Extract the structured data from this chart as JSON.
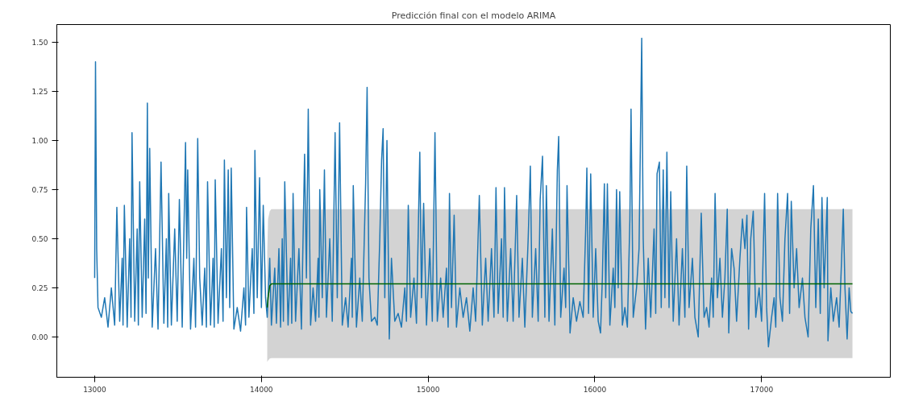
{
  "chart_data": {
    "type": "line",
    "title": "Predicción final con el modelo ARIMA",
    "xlim": [
      12773,
      17772
    ],
    "ylim": [
      -0.205,
      1.59
    ],
    "xticks": [
      13000,
      14000,
      15000,
      16000,
      17000
    ],
    "yticks": [
      {
        "value": 0,
        "label": "0.00"
      },
      {
        "value": 0.25,
        "label": "0.25"
      },
      {
        "value": 0.5,
        "label": "0.50"
      },
      {
        "value": 0.75,
        "label": "0.75"
      },
      {
        "value": 1,
        "label": "1.00"
      },
      {
        "value": 1.25,
        "label": "1.25"
      },
      {
        "value": 1.5,
        "label": "1.50"
      }
    ],
    "grid": false,
    "marker": "none",
    "line_style": "solid",
    "series": [
      {
        "color": "#1f77b4",
        "x": [
          13000,
          13005,
          13012,
          13020,
          13040,
          13060,
          13080,
          13100,
          13120,
          13133,
          13150,
          13165,
          13170,
          13178,
          13195,
          13210,
          13218,
          13224,
          13240,
          13255,
          13262,
          13270,
          13285,
          13300,
          13308,
          13316,
          13322,
          13330,
          13345,
          13365,
          13380,
          13398,
          13415,
          13430,
          13438,
          13444,
          13460,
          13480,
          13495,
          13508,
          13525,
          13545,
          13552,
          13558,
          13575,
          13595,
          13605,
          13618,
          13630,
          13645,
          13660,
          13670,
          13677,
          13695,
          13710,
          13717,
          13723,
          13740,
          13760,
          13770,
          13778,
          13790,
          13801,
          13810,
          13819,
          13835,
          13855,
          13875,
          13895,
          13905,
          13911,
          13925,
          13945,
          13955,
          13961,
          13975,
          13989,
          14000,
          14011,
          14025,
          14035,
          14050,
          14060,
          14080,
          14090,
          14105,
          14115,
          14125,
          14132,
          14140,
          14160,
          14175,
          14182,
          14190,
          14205,
          14225,
          14240,
          14259,
          14270,
          14281,
          14295,
          14310,
          14325,
          14340,
          14345,
          14350,
          14365,
          14378,
          14390,
          14410,
          14425,
          14442,
          14455,
          14469,
          14485,
          14505,
          14520,
          14540,
          14545,
          14551,
          14570,
          14590,
          14605,
          14625,
          14634,
          14645,
          14660,
          14680,
          14695,
          14710,
          14721,
          14730,
          14740,
          14753,
          14767,
          14780,
          14800,
          14820,
          14840,
          14860,
          14870,
          14881,
          14895,
          14915,
          14930,
          14950,
          14960,
          14973,
          14990,
          15010,
          15025,
          15041,
          15055,
          15075,
          15090,
          15110,
          15120,
          15128,
          15140,
          15156,
          15170,
          15190,
          15210,
          15230,
          15250,
          15270,
          15285,
          15307,
          15325,
          15345,
          15360,
          15380,
          15395,
          15407,
          15420,
          15440,
          15450,
          15458,
          15475,
          15495,
          15510,
          15531,
          15545,
          15565,
          15580,
          15600,
          15613,
          15625,
          15645,
          15660,
          15672,
          15686,
          15700,
          15709,
          15725,
          15745,
          15760,
          15775,
          15783,
          15795,
          15815,
          15825,
          15833,
          15845,
          15851,
          15870,
          15890,
          15910,
          15930,
          15945,
          15952,
          15962,
          15975,
          15990,
          16005,
          16020,
          16034,
          16045,
          16057,
          16065,
          16075,
          16090,
          16110,
          16120,
          16130,
          16140,
          16149,
          16165,
          16180,
          16195,
          16210,
          16217,
          16230,
          16250,
          16265,
          16281,
          16290,
          16304,
          16320,
          16335,
          16355,
          16365,
          16373,
          16387,
          16398,
          16410,
          16420,
          16432,
          16445,
          16455,
          16470,
          16490,
          16505,
          16525,
          16540,
          16551,
          16565,
          16585,
          16600,
          16620,
          16638,
          16655,
          16670,
          16685,
          16700,
          16710,
          16721,
          16735,
          16750,
          16765,
          16780,
          16794,
          16803,
          16820,
          16835,
          16850,
          16870,
          16885,
          16900,
          16912,
          16922,
          16935,
          16950,
          16965,
          16985,
          17000,
          17018,
          17030,
          17041,
          17060,
          17075,
          17085,
          17096,
          17110,
          17125,
          17140,
          17156,
          17168,
          17178,
          17195,
          17210,
          17225,
          17245,
          17260,
          17279,
          17295,
          17311,
          17325,
          17340,
          17352,
          17362,
          17375,
          17394,
          17398,
          17415,
          17430,
          17450,
          17465,
          17480,
          17490,
          17500,
          17513,
          17525,
          17535,
          17545
        ],
        "values": [
          0.3,
          1.4,
          0.45,
          0.15,
          0.1,
          0.2,
          0.05,
          0.25,
          0.06,
          0.66,
          0.08,
          0.4,
          0.06,
          0.67,
          0.05,
          0.5,
          0.1,
          1.04,
          0.08,
          0.55,
          0.06,
          0.79,
          0.1,
          0.6,
          0.12,
          1.19,
          0.3,
          0.96,
          0.05,
          0.45,
          0.04,
          0.89,
          0.07,
          0.5,
          0.05,
          0.73,
          0.06,
          0.55,
          0.08,
          0.7,
          0.05,
          0.99,
          0.4,
          0.85,
          0.04,
          0.4,
          0.05,
          1.01,
          0.3,
          0.06,
          0.35,
          0.05,
          0.79,
          0.06,
          0.4,
          0.05,
          0.8,
          0.07,
          0.45,
          0.08,
          0.9,
          0.2,
          0.85,
          0.15,
          0.86,
          0.04,
          0.15,
          0.03,
          0.25,
          0.06,
          0.66,
          0.1,
          0.45,
          0.12,
          0.95,
          0.2,
          0.81,
          0.15,
          0.67,
          0.2,
          0.1,
          0.4,
          0.06,
          0.35,
          0.07,
          0.45,
          0.05,
          0.5,
          0.08,
          0.79,
          0.06,
          0.4,
          0.07,
          0.73,
          0.08,
          0.45,
          0.04,
          0.93,
          0.3,
          1.16,
          0.06,
          0.25,
          0.08,
          0.4,
          0.1,
          0.75,
          0.2,
          0.85,
          0.1,
          0.5,
          0.08,
          1.04,
          0.2,
          1.09,
          0.06,
          0.2,
          0.05,
          0.4,
          0.1,
          0.77,
          0.05,
          0.3,
          0.08,
          0.78,
          1.27,
          0.3,
          0.08,
          0.1,
          0.06,
          0.5,
          0.9,
          1.06,
          0.2,
          1.0,
          -0.01,
          0.4,
          0.08,
          0.12,
          0.05,
          0.25,
          0.08,
          0.67,
          0.1,
          0.3,
          0.07,
          0.94,
          0.2,
          0.68,
          0.06,
          0.45,
          0.08,
          1.04,
          0.08,
          0.3,
          0.1,
          0.35,
          0.05,
          0.73,
          0.15,
          0.62,
          0.05,
          0.25,
          0.1,
          0.2,
          0.03,
          0.25,
          0.08,
          0.72,
          0.06,
          0.4,
          0.08,
          0.45,
          0.1,
          0.76,
          0.12,
          0.5,
          0.1,
          0.76,
          0.08,
          0.45,
          0.08,
          0.72,
          0.1,
          0.4,
          0.05,
          0.5,
          0.87,
          0.1,
          0.45,
          0.08,
          0.7,
          0.92,
          0.1,
          0.77,
          0.08,
          0.55,
          0.06,
          0.85,
          1.02,
          0.1,
          0.35,
          0.15,
          0.77,
          0.3,
          0.02,
          0.2,
          0.08,
          0.18,
          0.1,
          0.55,
          0.86,
          0.12,
          0.83,
          0.1,
          0.45,
          0.08,
          0.02,
          0.3,
          0.78,
          0.2,
          0.78,
          0.06,
          0.35,
          0.15,
          0.75,
          0.25,
          0.74,
          0.06,
          0.15,
          0.05,
          0.6,
          1.16,
          0.1,
          0.25,
          0.45,
          1.52,
          0.5,
          0.04,
          0.4,
          0.1,
          0.55,
          0.12,
          0.83,
          0.89,
          0.15,
          0.85,
          0.2,
          0.94,
          0.15,
          0.74,
          0.08,
          0.5,
          0.06,
          0.45,
          0.1,
          0.87,
          0.15,
          0.4,
          0.1,
          0.0,
          0.63,
          0.1,
          0.15,
          0.05,
          0.3,
          0.1,
          0.73,
          0.2,
          0.4,
          0.1,
          0.3,
          0.65,
          0.02,
          0.45,
          0.35,
          0.08,
          0.4,
          0.6,
          0.45,
          0.62,
          0.04,
          0.5,
          0.64,
          0.1,
          0.25,
          0.08,
          0.73,
          0.15,
          -0.05,
          0.1,
          0.2,
          0.05,
          0.73,
          0.2,
          0.08,
          0.5,
          0.73,
          0.12,
          0.69,
          0.25,
          0.45,
          0.15,
          0.3,
          0.1,
          0.0,
          0.55,
          0.77,
          0.15,
          0.6,
          0.12,
          0.71,
          0.25,
          0.71,
          -0.02,
          0.25,
          0.08,
          0.2,
          0.05,
          0.4,
          0.65,
          0.25,
          -0.01,
          0.25,
          0.13,
          0.12
        ]
      },
      {
        "color": "#006400",
        "x": [
          14035,
          14040,
          14050,
          14060,
          17545
        ],
        "values": [
          0.15,
          0.2,
          0.26,
          0.27,
          0.27
        ],
        "lower": [
          -0.127,
          -0.12,
          -0.11,
          -0.108,
          -0.108
        ],
        "upper": [
          0.43,
          0.6,
          0.64,
          0.65,
          0.65
        ]
      }
    ]
  }
}
